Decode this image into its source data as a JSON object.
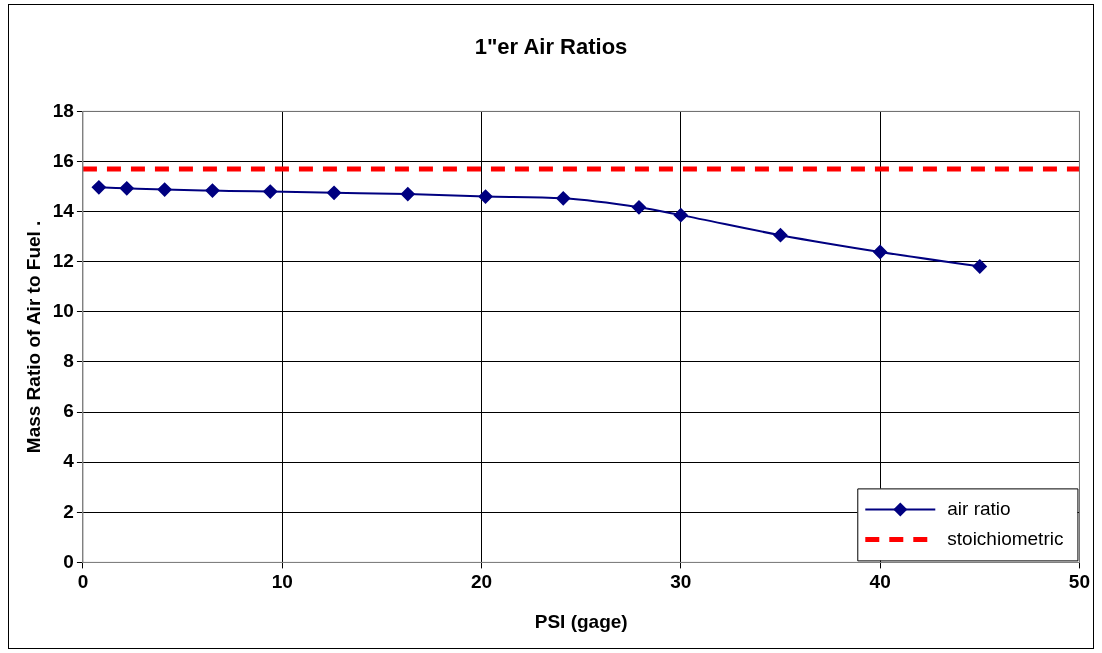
{
  "chart_data": {
    "type": "line",
    "title": "1\"er Air Ratios",
    "xlabel": "PSI (gage)",
    "ylabel": "Mass Ratio of Air to Fuel .",
    "xlim": [
      0,
      50
    ],
    "xticks": [
      0,
      10,
      20,
      30,
      40,
      50
    ],
    "ylim": [
      0,
      18
    ],
    "yticks": [
      0,
      2,
      4,
      6,
      8,
      10,
      12,
      14,
      16,
      18
    ],
    "grid": true,
    "legend": "bottom right",
    "series": [
      {
        "name": "air ratio",
        "color": "#000080",
        "marker": "diamond",
        "line_style": "solid",
        "x": [
          0.8,
          2.2,
          4.1,
          6.5,
          9.4,
          12.6,
          16.3,
          20.2,
          24.1,
          27.9,
          30,
          35,
          40,
          45
        ],
        "values": [
          14.97,
          14.93,
          14.88,
          14.84,
          14.8,
          14.75,
          14.7,
          14.6,
          14.53,
          14.17,
          13.86,
          13.06,
          12.39,
          11.81
        ]
      },
      {
        "name": "stoichiometric",
        "color": "#ff0000",
        "marker": "none",
        "line_style": "dashed",
        "x": [
          0,
          50
        ],
        "values": [
          15.7,
          15.7
        ]
      }
    ]
  }
}
